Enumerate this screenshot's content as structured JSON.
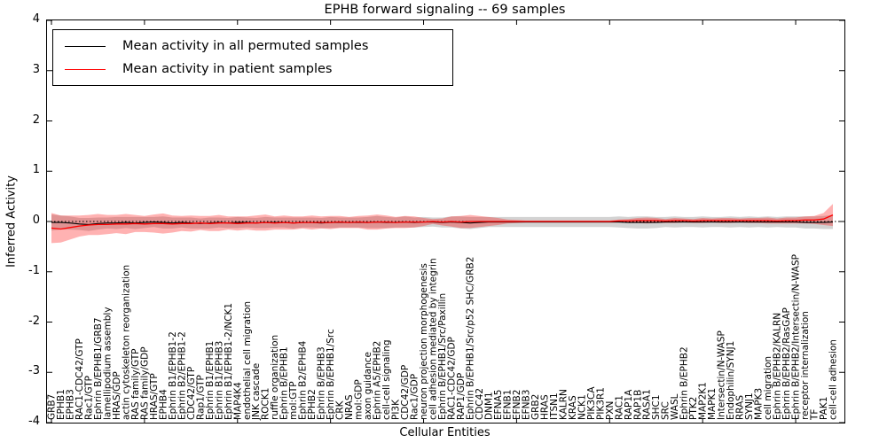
{
  "title": "EPHB forward signaling -- 69 samples",
  "colors": {
    "permuted_line": "#000000",
    "patient_line": "#ff0000",
    "patient_band": "rgba(255,0,0,0.30)",
    "permuted_band": "rgba(128,128,128,0.35)",
    "zero_line": "#000000"
  },
  "legend": {
    "items": [
      {
        "label": "Mean activity in all permuted samples",
        "color": "#000000"
      },
      {
        "label": "Mean activity in patient samples",
        "color": "#ff0000"
      }
    ]
  },
  "axes": {
    "xlabel": "Cellular Entities",
    "ylabel": "Inferred Activity",
    "yticks": [
      4,
      3,
      2,
      1,
      0,
      -1,
      -2,
      -3,
      -4
    ]
  },
  "chart_data": {
    "type": "line",
    "title": "EPHB forward signaling -- 69 samples",
    "xlabel": "Cellular Entities",
    "ylabel": "Inferred Activity",
    "ylim": [
      -4,
      4
    ],
    "grid": false,
    "legend_position": "upper left",
    "zero_line_style": "dotted",
    "x_tick_label_rotation": 90,
    "categories": [
      "GRB7",
      "EPHB1",
      "EPHB3",
      "RAC1-CDC42/GTP",
      "Rac1/GTP",
      "Ephrin B/EPHB1/GRB7",
      "lamellipodium assembly",
      "HRAS/GDP",
      "actin cytoskeleton reorganization",
      "RAS family/GTP",
      "RAS family/GDP",
      "HRAS/GTP",
      "EPHB4",
      "Ephrin B1/EPHB1-2",
      "Ephrin B2/EPHB1-2",
      "CDC42/GTP",
      "Rap1/GTP",
      "Ephrin B1/EPHB1",
      "Ephrin B1/EPHB3",
      "Ephrin B1/EPHB1-2/NCK1",
      "MAP4K4",
      "endothelial cell migration",
      "JNK cascade",
      "ROCK1",
      "ruffle organization",
      "Ephrin B/EPHB1",
      "mol:GTP",
      "Ephrin B2/EPHB4",
      "EPHB2",
      "Ephrin B/EPHB3",
      "Ephrin B/EPHB1/Src",
      "CRK",
      "NRAS",
      "mol:GDP",
      "axon guidance",
      "Ephrin A5/EPHB2",
      "cell-cell signaling",
      "PI3K",
      "CDC42/GDP",
      "Rac1/GDP",
      "neuron projection morphogenesis",
      "cell adhesion mediated by integrin",
      "Ephrin B/EPHB1/Src/Paxillin",
      "RAC1-CDC42/GDP",
      "RAP1/GDP",
      "Ephrin B/EPHB1/Src/p52 SHC/GRB2",
      "CDC42",
      "DNM1",
      "EFNA5",
      "EFNB1",
      "EFNB2",
      "EFNB3",
      "GRB2",
      "HRAS",
      "ITSN1",
      "KALRN",
      "KRAS",
      "NCK1",
      "PIK3CA",
      "PIK3R1",
      "PXN",
      "RAC1",
      "RAP1A",
      "RAP1B",
      "RASA1",
      "SHC1",
      "SRC",
      "WASL",
      "Ephrin B/EPHB2",
      "PTK2",
      "MAP2K1",
      "MAPK1",
      "Intersectin/N-WASP",
      "Endophilin/SYNJ1",
      "RRAS",
      "SYNJ1",
      "MAPK3",
      "cell migration",
      "Ephrin B/EPHB2/KALRN",
      "Ephrin B/EPHB2/RasGAP",
      "Ephrin B/EPHB2/Intersectin/N-WASP",
      "receptor internalization",
      "TF",
      "PAK1",
      "cell-cell adhesion"
    ],
    "series": [
      {
        "name": "Mean activity in all permuted samples",
        "color": "#000000",
        "values": [
          -0.02,
          -0.02,
          -0.03,
          -0.05,
          -0.06,
          -0.04,
          -0.03,
          -0.03,
          -0.02,
          -0.03,
          -0.02,
          -0.01,
          -0.02,
          -0.03,
          -0.02,
          -0.03,
          -0.04,
          -0.03,
          -0.02,
          -0.03,
          -0.02,
          -0.02,
          -0.03,
          -0.02,
          -0.02,
          -0.02,
          -0.03,
          -0.02,
          -0.02,
          -0.03,
          -0.02,
          -0.02,
          -0.02,
          -0.02,
          -0.02,
          -0.01,
          -0.02,
          -0.02,
          -0.01,
          -0.02,
          -0.01,
          -0.01,
          -0.02,
          -0.01,
          -0.02,
          -0.03,
          -0.02,
          -0.01,
          -0.01,
          -0.01,
          -0.01,
          -0.01,
          -0.01,
          -0.01,
          -0.01,
          -0.01,
          -0.01,
          -0.01,
          -0.01,
          -0.01,
          -0.01,
          -0.01,
          -0.02,
          -0.02,
          -0.02,
          -0.02,
          -0.01,
          -0.01,
          -0.01,
          -0.01,
          -0.01,
          -0.01,
          -0.01,
          -0.01,
          -0.01,
          -0.01,
          -0.01,
          -0.01,
          -0.01,
          -0.01,
          -0.01,
          -0.02,
          -0.02,
          -0.02,
          -0.01
        ],
        "std": [
          0.16,
          0.14,
          0.13,
          0.12,
          0.13,
          0.12,
          0.11,
          0.12,
          0.11,
          0.12,
          0.11,
          0.1,
          0.12,
          0.11,
          0.1,
          0.11,
          0.1,
          0.11,
          0.1,
          0.1,
          0.11,
          0.1,
          0.1,
          0.11,
          0.1,
          0.1,
          0.11,
          0.1,
          0.1,
          0.1,
          0.11,
          0.1,
          0.1,
          0.1,
          0.11,
          0.12,
          0.11,
          0.1,
          0.11,
          0.1,
          0.1,
          0.09,
          0.1,
          0.11,
          0.12,
          0.12,
          0.11,
          0.1,
          0.1,
          0.1,
          0.1,
          0.1,
          0.1,
          0.1,
          0.1,
          0.1,
          0.1,
          0.1,
          0.1,
          0.1,
          0.1,
          0.11,
          0.11,
          0.12,
          0.12,
          0.11,
          0.1,
          0.11,
          0.1,
          0.1,
          0.11,
          0.1,
          0.1,
          0.11,
          0.1,
          0.11,
          0.1,
          0.11,
          0.1,
          0.11,
          0.11,
          0.12,
          0.12,
          0.13,
          0.14
        ]
      },
      {
        "name": "Mean activity in patient samples",
        "color": "#ff0000",
        "values": [
          -0.13,
          -0.15,
          -0.12,
          -0.09,
          -0.07,
          -0.06,
          -0.06,
          -0.05,
          -0.05,
          -0.04,
          -0.05,
          -0.04,
          -0.04,
          -0.05,
          -0.04,
          -0.04,
          -0.03,
          -0.04,
          -0.03,
          -0.03,
          -0.04,
          -0.03,
          -0.03,
          -0.02,
          -0.03,
          -0.02,
          -0.03,
          -0.02,
          -0.02,
          -0.02,
          -0.02,
          -0.01,
          -0.02,
          -0.01,
          -0.02,
          -0.01,
          -0.01,
          -0.02,
          -0.01,
          -0.01,
          -0.01,
          0.0,
          -0.01,
          0.0,
          -0.01,
          0.0,
          0.0,
          0.0,
          0.0,
          0.0,
          0.0,
          0.0,
          0.0,
          0.0,
          0.0,
          0.0,
          0.0,
          0.0,
          0.0,
          0.0,
          0.0,
          0.01,
          0.01,
          0.02,
          0.02,
          0.02,
          0.01,
          0.02,
          0.02,
          0.01,
          0.02,
          0.02,
          0.02,
          0.02,
          0.02,
          0.02,
          0.02,
          0.02,
          0.01,
          0.02,
          0.02,
          0.03,
          0.03,
          0.05,
          0.13
        ],
        "std": [
          0.3,
          0.27,
          0.24,
          0.21,
          0.2,
          0.21,
          0.19,
          0.18,
          0.2,
          0.17,
          0.16,
          0.18,
          0.2,
          0.17,
          0.15,
          0.16,
          0.14,
          0.15,
          0.16,
          0.13,
          0.14,
          0.13,
          0.15,
          0.16,
          0.13,
          0.14,
          0.13,
          0.12,
          0.14,
          0.12,
          0.13,
          0.12,
          0.11,
          0.12,
          0.14,
          0.15,
          0.13,
          0.11,
          0.12,
          0.11,
          0.08,
          0.05,
          0.07,
          0.1,
          0.12,
          0.13,
          0.11,
          0.09,
          0.07,
          0.04,
          0.03,
          0.02,
          0.02,
          0.02,
          0.02,
          0.02,
          0.02,
          0.02,
          0.02,
          0.02,
          0.02,
          0.03,
          0.04,
          0.05,
          0.06,
          0.05,
          0.04,
          0.05,
          0.04,
          0.04,
          0.05,
          0.04,
          0.05,
          0.05,
          0.04,
          0.05,
          0.05,
          0.06,
          0.05,
          0.06,
          0.06,
          0.07,
          0.08,
          0.12,
          0.22
        ]
      }
    ]
  }
}
